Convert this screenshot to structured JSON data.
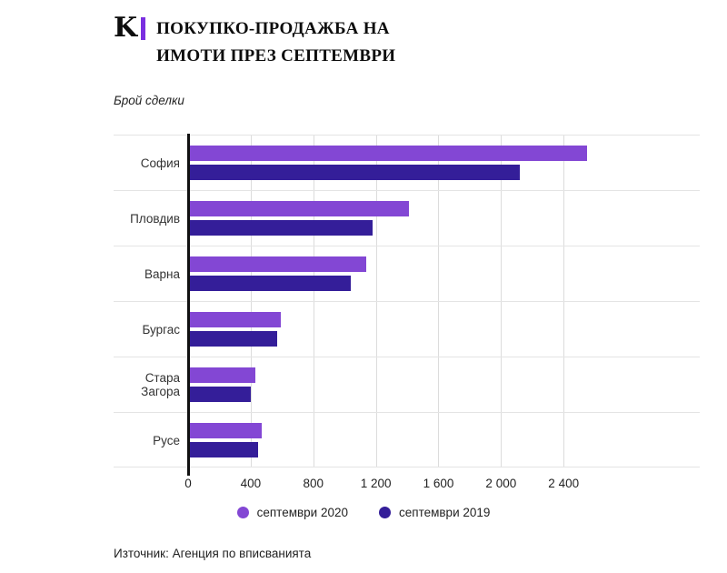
{
  "header": {
    "logo_text": "K",
    "title_line1": "ПОКУПКО-ПРОДАЖБА НА",
    "title_line2": "ИМОТИ ПРЕЗ СЕПТЕМВРИ"
  },
  "chart": {
    "units_label": "Брой сделки"
  },
  "chart_data": {
    "type": "bar",
    "orientation": "horizontal",
    "title": "Покупко-продажба на имоти през септември",
    "xlabel": "Брой сделки",
    "ylabel": "",
    "categories": [
      "София",
      "Пловдив",
      "Варна",
      "Бургас",
      "Стара Загора",
      "Русе"
    ],
    "series": [
      {
        "name": "септември 2020",
        "color": "#8347d4",
        "values": [
          2550,
          1410,
          1140,
          590,
          430,
          470
        ]
      },
      {
        "name": "септември 2019",
        "color": "#341e99",
        "values": [
          2120,
          1180,
          1040,
          570,
          400,
          445
        ]
      }
    ],
    "xticks": [
      0,
      400,
      800,
      1200,
      1600,
      2000,
      2400
    ],
    "xtick_labels": [
      "0",
      "400",
      "800",
      "1 200",
      "1 600",
      "2 000",
      "2 400"
    ],
    "xlim": [
      0,
      3270
    ],
    "grid": true,
    "legend_position": "bottom"
  },
  "footer": {
    "source": "Източник: Агенция по вписванията"
  }
}
